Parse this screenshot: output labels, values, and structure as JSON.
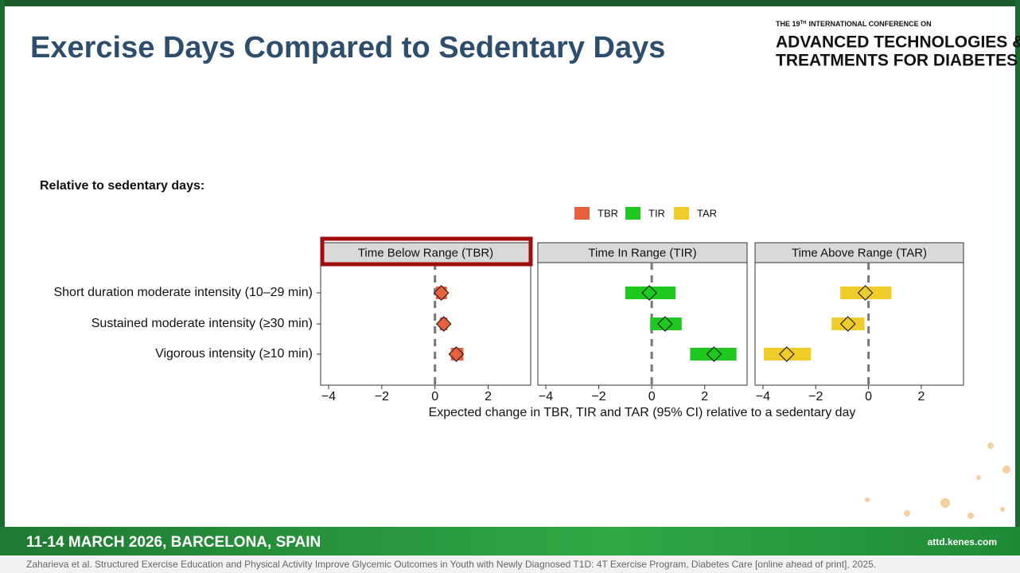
{
  "header": {
    "title": "Exercise Days Compared to Sedentary Days",
    "logo_pre": "THE 19",
    "logo_sup": "TH",
    "logo_post": "INTERNATIONAL CONFERENCE ON",
    "logo_line1": "ADVANCED TECHNOLOGIES &",
    "logo_line2": "TREATMENTS FOR DIABETES"
  },
  "subheading": "Relative to sedentary days:",
  "chart_data": {
    "type": "forest",
    "categories": [
      "Short duration moderate intensity (10–29 min)",
      "Sustained moderate intensity (≥30 min)",
      "Vigorous intensity (≥10 min)"
    ],
    "series": [
      {
        "name": "TBR",
        "panel_title": "Time Below Range (TBR)",
        "color": "#e8603c",
        "values": [
          0.24,
          0.33,
          0.8
        ],
        "lower": [
          0.03,
          0.18,
          0.6
        ],
        "upper": [
          0.45,
          0.47,
          1.07
        ]
      },
      {
        "name": "TIR",
        "panel_title": "Time In Range (TIR)",
        "color": "#1ec81e",
        "values": [
          -0.09,
          0.5,
          2.35
        ],
        "lower": [
          -1.0,
          -0.06,
          1.45
        ],
        "upper": [
          0.9,
          1.13,
          3.2
        ]
      },
      {
        "name": "TAR",
        "panel_title": "Time Above Range (TAR)",
        "color": "#f0cc2a",
        "values": [
          -0.12,
          -0.78,
          -3.1
        ],
        "lower": [
          -1.07,
          -1.4,
          -3.97
        ],
        "upper": [
          0.87,
          -0.15,
          -2.18
        ]
      }
    ],
    "xlim": [
      -4.3,
      3.6
    ],
    "xticks": [
      {
        "value": -4,
        "label": "−4"
      },
      {
        "value": -2,
        "label": "−2"
      },
      0,
      2
    ],
    "reference_x": 0,
    "xlabel": "Expected change in TBR, TIR and TAR (95% CI) relative to a sedentary day"
  },
  "footer": {
    "dates": "11-14 MARCH 2026, BARCELONA, SPAIN",
    "website": "attd.kenes.com",
    "citation": "Zaharieva et al. Structured Exercise Education and Physical Activity Improve Glycemic Outcomes in Youth with Newly Diagnosed T1D: 4T Exercise Program, Diabetes Care [online ahead of print], 2025."
  }
}
